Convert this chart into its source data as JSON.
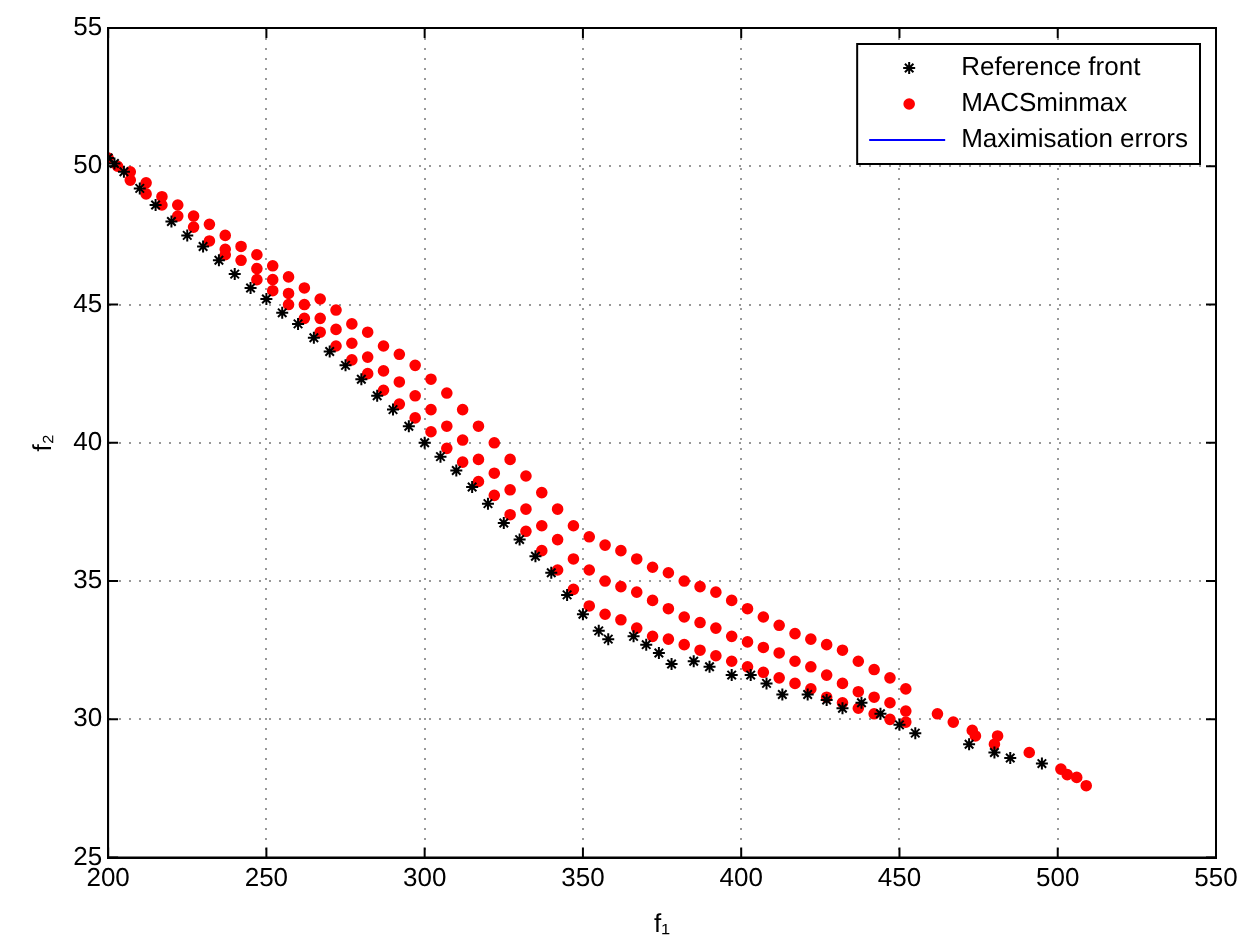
{
  "chart_data": {
    "type": "scatter",
    "xlabel": "f₁",
    "ylabel": "f₂",
    "xlim": [
      200,
      550
    ],
    "ylim": [
      25,
      55
    ],
    "xticks": [
      200,
      250,
      300,
      350,
      400,
      450,
      500,
      550
    ],
    "yticks": [
      25,
      30,
      35,
      40,
      45,
      50,
      55
    ],
    "grid": true,
    "legend": "top right",
    "series": [
      {
        "name": "Reference front",
        "type": "scatter",
        "marker": "cross",
        "color": "#000000",
        "x": [
          200,
          202,
          205,
          210,
          215,
          220,
          225,
          230,
          235,
          240,
          245,
          250,
          255,
          260,
          265,
          270,
          275,
          280,
          285,
          290,
          295,
          300,
          305,
          310,
          315,
          320,
          325,
          330,
          335,
          340,
          345,
          350,
          355,
          358,
          366,
          370,
          374,
          378,
          385,
          390,
          397,
          403,
          408,
          413,
          421,
          427,
          432,
          438,
          444,
          450,
          455,
          472,
          480,
          485,
          495
        ],
        "values": [
          50.3,
          50.1,
          49.8,
          49.2,
          48.6,
          48.0,
          47.5,
          47.1,
          46.6,
          46.1,
          45.6,
          45.2,
          44.7,
          44.3,
          43.8,
          43.3,
          42.8,
          42.3,
          41.7,
          41.2,
          40.6,
          40.0,
          39.5,
          39.0,
          38.4,
          37.8,
          37.1,
          36.5,
          35.9,
          35.3,
          34.5,
          33.8,
          33.2,
          32.9,
          33.0,
          32.7,
          32.4,
          32.0,
          32.1,
          31.9,
          31.6,
          31.6,
          31.3,
          30.9,
          30.9,
          30.7,
          30.4,
          30.6,
          30.2,
          29.8,
          29.5,
          29.1,
          28.8,
          28.6,
          28.4
        ]
      },
      {
        "name": "MACSminmax",
        "type": "scatter",
        "marker": "circle",
        "color": "#ff0000",
        "x": [
          200,
          203,
          207,
          207,
          212,
          212,
          217,
          217,
          222,
          222,
          227,
          227,
          232,
          232,
          237,
          237,
          237,
          242,
          242,
          247,
          247,
          247,
          252,
          252,
          252,
          257,
          257,
          257,
          262,
          262,
          262,
          267,
          267,
          267,
          272,
          272,
          272,
          277,
          277,
          277,
          282,
          282,
          282,
          287,
          287,
          287,
          292,
          292,
          292,
          297,
          297,
          297,
          302,
          302,
          302,
          307,
          307,
          307,
          312,
          312,
          312,
          317,
          317,
          317,
          322,
          322,
          322,
          327,
          327,
          327,
          332,
          332,
          332,
          337,
          337,
          337,
          342,
          342,
          342,
          347,
          347,
          347,
          352,
          352,
          352,
          357,
          357,
          357,
          362,
          362,
          362,
          367,
          367,
          367,
          372,
          372,
          372,
          377,
          377,
          377,
          382,
          382,
          382,
          387,
          387,
          387,
          392,
          392,
          392,
          397,
          397,
          397,
          402,
          402,
          402,
          407,
          407,
          407,
          412,
          412,
          412,
          417,
          417,
          417,
          422,
          422,
          422,
          427,
          427,
          427,
          432,
          432,
          432,
          437,
          437,
          437,
          442,
          442,
          442,
          447,
          447,
          447,
          452,
          452,
          452,
          462,
          467,
          473,
          474,
          481,
          480,
          491,
          501,
          503,
          506,
          509
        ],
        "values": [
          50.3,
          50.0,
          49.8,
          49.5,
          49.4,
          49.0,
          48.9,
          48.6,
          48.6,
          48.2,
          48.2,
          47.8,
          47.9,
          47.3,
          47.5,
          47.0,
          46.8,
          47.1,
          46.6,
          46.8,
          46.3,
          45.9,
          46.4,
          45.9,
          45.5,
          46.0,
          45.4,
          45.0,
          45.6,
          45.0,
          44.5,
          45.2,
          44.5,
          44.0,
          44.8,
          44.1,
          43.5,
          44.3,
          43.6,
          43.0,
          44.0,
          43.1,
          42.5,
          43.5,
          42.6,
          41.9,
          43.2,
          42.2,
          41.4,
          42.8,
          41.7,
          40.9,
          42.3,
          41.2,
          40.4,
          41.8,
          40.6,
          39.8,
          41.2,
          40.1,
          39.3,
          40.6,
          39.4,
          38.6,
          40.0,
          38.9,
          38.1,
          39.4,
          38.3,
          37.4,
          38.8,
          37.6,
          36.8,
          38.2,
          37.0,
          36.1,
          37.6,
          36.5,
          35.4,
          37.0,
          35.8,
          34.7,
          36.6,
          35.4,
          34.1,
          36.3,
          35.0,
          33.8,
          36.1,
          34.8,
          33.6,
          35.8,
          34.6,
          33.3,
          35.5,
          34.3,
          33.0,
          35.3,
          34.0,
          32.9,
          35.0,
          33.7,
          32.7,
          34.8,
          33.5,
          32.5,
          34.6,
          33.3,
          32.3,
          34.3,
          33.0,
          32.1,
          34.0,
          32.8,
          31.9,
          33.7,
          32.6,
          31.7,
          33.4,
          32.4,
          31.5,
          33.1,
          32.1,
          31.3,
          32.9,
          31.9,
          31.1,
          32.7,
          31.6,
          30.8,
          32.5,
          31.3,
          30.6,
          32.1,
          31.0,
          30.4,
          31.8,
          30.8,
          30.2,
          31.5,
          30.6,
          30.0,
          31.1,
          30.3,
          29.9,
          30.2,
          29.9,
          29.6,
          29.4,
          29.4,
          29.1,
          28.8,
          28.2,
          28.0,
          27.9,
          27.6
        ]
      },
      {
        "name": "Maximisation errors",
        "type": "line",
        "color": "#0000ff"
      }
    ]
  }
}
